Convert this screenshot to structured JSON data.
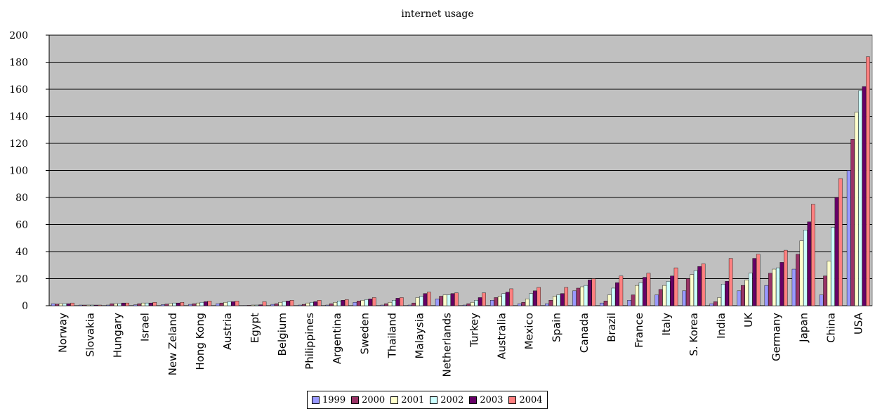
{
  "chart_data": {
    "type": "bar",
    "title": "internet usage",
    "xlabel": "",
    "ylabel": "",
    "ylim": [
      0,
      200
    ],
    "yticks": [
      0,
      20,
      40,
      60,
      80,
      100,
      120,
      140,
      160,
      180,
      200
    ],
    "grid": true,
    "legend_position": "bottom",
    "plot_background": "#c0c0c0",
    "categories": [
      "Norway",
      "Slovakia",
      "Hungary",
      "Israel",
      "New Zeland",
      "Hong Kong",
      "Austria",
      "Egypt",
      "Belgium",
      "Philippines",
      "Argentina",
      "Sweden",
      "Thailand",
      "Malaysia",
      "Netherlands",
      "Turkey",
      "Australia",
      "Mexico",
      "Spain",
      "Canada",
      "Brazil",
      "France",
      "Italy",
      "S. Korea",
      "India",
      "UK",
      "Germany",
      "Japan",
      "China",
      "USA"
    ],
    "series": [
      {
        "name": "1999",
        "color": "#9999ff",
        "values": [
          1.5,
          0.5,
          0.5,
          0.7,
          0.8,
          1,
          1.5,
          0.2,
          1,
          0.5,
          0.5,
          2.5,
          0.5,
          0.5,
          5,
          0.5,
          4,
          1.5,
          1.5,
          11,
          2,
          4,
          8,
          11,
          1.5,
          11,
          15,
          27,
          8,
          100
        ]
      },
      {
        "name": "2000",
        "color": "#993366",
        "values": [
          1.2,
          0.5,
          1.5,
          1.5,
          1.2,
          1.5,
          2,
          0.3,
          1.5,
          1,
          1.5,
          3.5,
          1.5,
          2,
          7,
          1.5,
          6,
          2.5,
          4,
          13,
          3.5,
          8,
          12,
          20,
          3,
          15,
          24,
          38,
          22,
          123
        ]
      },
      {
        "name": "2001",
        "color": "#ffffcc",
        "values": [
          1.5,
          0.5,
          1.5,
          2,
          1.5,
          2,
          2.5,
          0.5,
          2.5,
          2,
          2.5,
          4,
          2.5,
          6,
          8,
          2.5,
          7,
          5,
          7,
          14,
          8,
          15,
          15,
          23,
          6,
          19,
          27,
          48,
          33,
          143
        ]
      },
      {
        "name": "2002",
        "color": "#ccffff",
        "values": [
          1.5,
          0.5,
          1.5,
          2,
          2,
          2.5,
          3,
          0.5,
          3,
          2.5,
          3.5,
          4.5,
          4,
          7,
          8,
          4,
          9,
          9,
          8,
          15,
          13,
          17,
          18,
          26,
          16,
          24,
          28,
          56,
          58,
          159
        ]
      },
      {
        "name": "2003",
        "color": "#660066",
        "values": [
          1.5,
          0.5,
          2,
          2,
          2,
          3,
          3,
          0.7,
          3.5,
          3,
          4,
          5,
          5.5,
          9,
          9,
          6,
          10,
          11,
          9,
          19,
          17,
          21,
          22,
          29,
          18,
          35,
          32,
          62,
          80,
          162
        ]
      },
      {
        "name": "2004",
        "color": "#ff8080",
        "values": [
          2,
          0.5,
          2,
          2.5,
          2.5,
          3.5,
          3.5,
          3,
          4,
          4,
          4.5,
          6,
          6,
          10,
          9.5,
          9.5,
          12.5,
          13.5,
          13.5,
          20,
          22,
          24,
          28,
          31,
          35,
          38,
          41,
          75,
          94,
          184
        ]
      }
    ]
  }
}
